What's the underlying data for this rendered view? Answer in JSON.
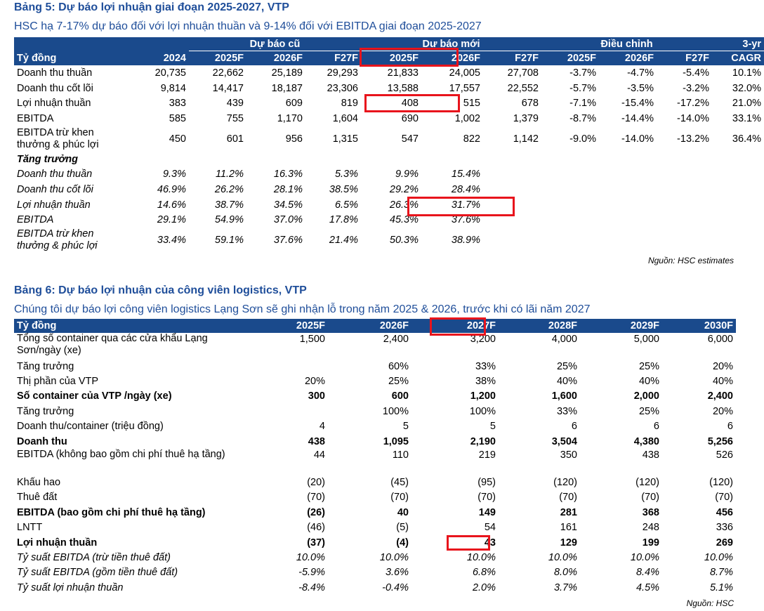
{
  "table5": {
    "title": "Bảng 5: Dự báo lợi nhuận giai đoạn 2025-2027, VTP",
    "subtitle": "HSC hạ 7-17% dự báo đối với lợi nhuận thuần và 9-14% đối với EBITDA giai đoạn 2025-2027",
    "group_old": "Dự báo cũ",
    "group_new": "Dự báo mới",
    "group_adj": "Điều chỉnh",
    "group_cagr": "3-yr",
    "headers": [
      "Tỷ đồng",
      "2024",
      "2025F",
      "2026F",
      "F27F",
      "2025F",
      "2026F",
      "F27F",
      "2025F",
      "2026F",
      "F27F",
      "CAGR"
    ],
    "rows": [
      [
        "Doanh thu thuần",
        "20,735",
        "22,662",
        "25,189",
        "29,293",
        "21,833",
        "24,005",
        "27,708",
        "-3.7%",
        "-4.7%",
        "-5.4%",
        "10.1%"
      ],
      [
        "Doanh thu cốt lõi",
        "9,814",
        "14,417",
        "18,187",
        "23,306",
        "13,588",
        "17,557",
        "22,552",
        "-5.7%",
        "-3.5%",
        "-3.2%",
        "32.0%"
      ],
      [
        "Lợi nhuận thuần",
        "383",
        "439",
        "609",
        "819",
        "408",
        "515",
        "678",
        "-7.1%",
        "-15.4%",
        "-17.2%",
        "21.0%"
      ],
      [
        "EBITDA",
        "585",
        "755",
        "1,170",
        "1,604",
        "690",
        "1,002",
        "1,379",
        "-8.7%",
        "-14.4%",
        "-14.0%",
        "33.1%"
      ],
      [
        "EBITDA trừ khen thưởng & phúc lợi",
        "450",
        "601",
        "956",
        "1,315",
        "547",
        "822",
        "1,142",
        "-9.0%",
        "-14.0%",
        "-13.2%",
        "36.4%"
      ]
    ],
    "growth_label": "Tăng trưởng",
    "growth_rows": [
      [
        "Doanh thu thuần",
        "9.3%",
        "11.2%",
        "16.3%",
        "5.3%",
        "9.9%",
        "15.4%"
      ],
      [
        "Doanh thu cốt lõi",
        "46.9%",
        "26.2%",
        "28.1%",
        "38.5%",
        "29.2%",
        "28.4%"
      ],
      [
        "Lợi nhuận thuần",
        "14.6%",
        "38.7%",
        "34.5%",
        "6.5%",
        "26.3%",
        "31.7%"
      ],
      [
        "EBITDA",
        "29.1%",
        "54.9%",
        "37.0%",
        "17.8%",
        "45.3%",
        "37.6%"
      ],
      [
        "EBITDA trừ khen thưởng & phúc lợi",
        "33.4%",
        "59.1%",
        "37.6%",
        "21.4%",
        "50.3%",
        "38.9%"
      ]
    ],
    "source": "Nguồn: HSC estimates"
  },
  "table6": {
    "title": "Bảng 6: Dự báo lợi nhuận của công viên logistics, VTP",
    "subtitle": "Chúng tôi dự báo lợi công viên logistics Lạng Sơn sẽ ghi nhận lỗ trong năm 2025 & 2026, trước khi có lãi năm 2027",
    "headers": [
      "Tỷ đồng",
      "2025F",
      "2026F",
      "2027F",
      "2028F",
      "2029F",
      "2030F"
    ],
    "rows": [
      {
        "label": "Tổng số container qua các cửa khẩu Lạng Sơn/ngày (xe)",
        "values": [
          "1,500",
          "2,400",
          "3,200",
          "4,000",
          "5,000",
          "6,000"
        ],
        "style": "tall"
      },
      {
        "label": "Tăng trưởng",
        "values": [
          "",
          "60%",
          "33%",
          "25%",
          "25%",
          "20%"
        ],
        "style": ""
      },
      {
        "label": "Thị phần của VTP",
        "values": [
          "20%",
          "25%",
          "38%",
          "40%",
          "40%",
          "40%"
        ],
        "style": ""
      },
      {
        "label": "Số container của VTP /ngày (xe)",
        "values": [
          "300",
          "600",
          "1,200",
          "1,600",
          "2,000",
          "2,400"
        ],
        "style": "bold"
      },
      {
        "label": "Tăng trưởng",
        "values": [
          "",
          "100%",
          "100%",
          "33%",
          "25%",
          "20%"
        ],
        "style": ""
      },
      {
        "label": "Doanh thu/container (triệu đồng)",
        "values": [
          "4",
          "5",
          "5",
          "6",
          "6",
          "6"
        ],
        "style": ""
      },
      {
        "label": "Doanh thu",
        "values": [
          "438",
          "1,095",
          "2,190",
          "3,504",
          "4,380",
          "5,256"
        ],
        "style": "bold"
      },
      {
        "label": "EBITDA (không bao gồm chi phí thuê hạ tầng)",
        "values": [
          "44",
          "110",
          "219",
          "350",
          "438",
          "526"
        ],
        "style": "tall"
      },
      {
        "label": "Khấu hao",
        "values": [
          "(20)",
          "(45)",
          "(95)",
          "(120)",
          "(120)",
          "(120)"
        ],
        "style": ""
      },
      {
        "label": "Thuê đất",
        "values": [
          "(70)",
          "(70)",
          "(70)",
          "(70)",
          "(70)",
          "(70)"
        ],
        "style": ""
      },
      {
        "label": "EBITDA (bao gồm chi phí thuê hạ tầng)",
        "values": [
          "(26)",
          "40",
          "149",
          "281",
          "368",
          "456"
        ],
        "style": "bold"
      },
      {
        "label": "LNTT",
        "values": [
          "(46)",
          "(5)",
          "54",
          "161",
          "248",
          "336"
        ],
        "style": ""
      },
      {
        "label": "Lợi nhuận thuần",
        "values": [
          "(37)",
          "(4)",
          "43",
          "129",
          "199",
          "269"
        ],
        "style": "bold"
      },
      {
        "label": "Tỷ suất EBITDA (trừ tiền thuê đất)",
        "values": [
          "10.0%",
          "10.0%",
          "10.0%",
          "10.0%",
          "10.0%",
          "10.0%"
        ],
        "style": "italic"
      },
      {
        "label": "Tỷ suất EBITDA (gồm tiền thuê đất)",
        "values": [
          "-5.9%",
          "3.6%",
          "6.8%",
          "8.0%",
          "8.4%",
          "8.7%"
        ],
        "style": "italic"
      },
      {
        "label": "Tỷ suất lợi nhuận thuần",
        "values": [
          "-8.4%",
          "-0.4%",
          "2.0%",
          "3.7%",
          "4.5%",
          "5.1%"
        ],
        "style": "italic"
      }
    ],
    "source": "Nguồn: HSC"
  }
}
